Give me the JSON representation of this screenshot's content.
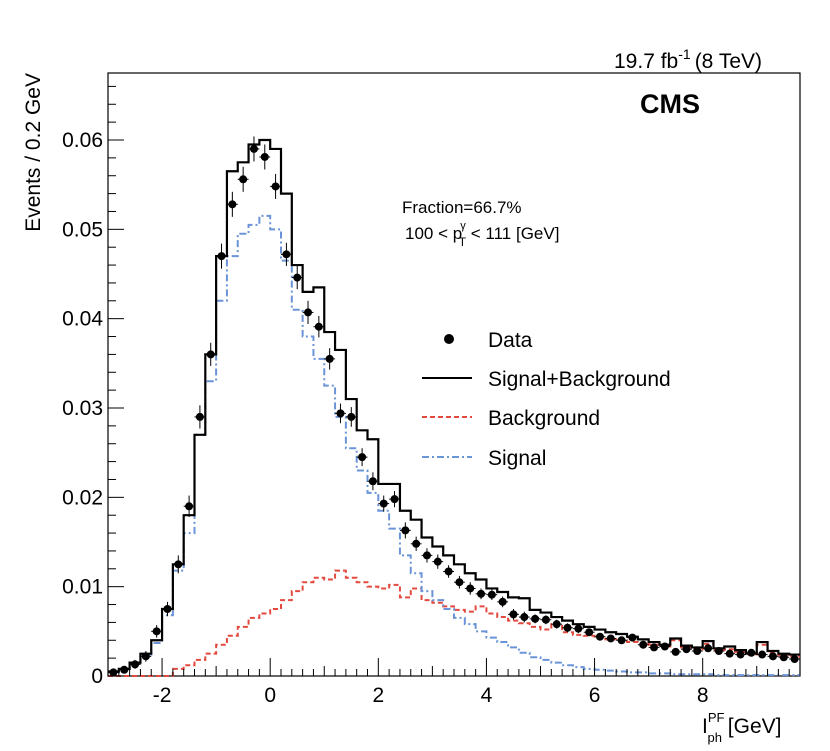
{
  "header": {
    "lumi": "19.7 fb",
    "lumi_sup": "-1",
    "energy": "(8 TeV)",
    "experiment": "CMS"
  },
  "annotation": {
    "fraction": "Fraction=66.7%",
    "range_prefix": "100 < p",
    "range_sup": "γ",
    "range_sub": "T",
    "range_suffix": " < 111 [GeV]"
  },
  "chart_data": {
    "type": "histogram",
    "title": "",
    "xlabel": "I",
    "xlabel_sup": "PF",
    "xlabel_sub": "ph",
    "xlabel_unit": " [GeV]",
    "ylabel": "Events / 0.2 GeV",
    "xlim": [
      -3,
      9.8
    ],
    "ylim": [
      0,
      0.0675
    ],
    "bin_width": 0.2,
    "x_ticks": [
      -2,
      0,
      2,
      4,
      6,
      8
    ],
    "y_ticks": [
      0,
      0.01,
      0.02,
      0.03,
      0.04,
      0.05,
      0.06
    ],
    "y_tick_labels": [
      "0",
      "0.01",
      "0.02",
      "0.03",
      "0.04",
      "0.05",
      "0.06"
    ],
    "x_tick_labels": [
      "-2",
      "0",
      "2",
      "4",
      "6",
      "8"
    ],
    "bin_edges_start": -3,
    "series": [
      {
        "name": "Signal+Background",
        "style": "solid",
        "color": "#000000",
        "values": [
          0.0005,
          0.0008,
          0.0015,
          0.0025,
          0.004,
          0.0075,
          0.0125,
          0.018,
          0.027,
          0.036,
          0.047,
          0.0565,
          0.0575,
          0.0595,
          0.06,
          0.059,
          0.054,
          0.046,
          0.043,
          0.0435,
          0.0385,
          0.0365,
          0.031,
          0.0275,
          0.0265,
          0.0215,
          0.0215,
          0.0185,
          0.0175,
          0.0155,
          0.0145,
          0.0135,
          0.0125,
          0.0115,
          0.0108,
          0.0098,
          0.0094,
          0.0088,
          0.0087,
          0.0074,
          0.0071,
          0.0066,
          0.0062,
          0.0058,
          0.0055,
          0.0052,
          0.0049,
          0.0047,
          0.0044,
          0.0041,
          0.0038,
          0.0035,
          0.0042,
          0.0034,
          0.0032,
          0.0039,
          0.0031,
          0.0033,
          0.0029,
          0.0025,
          0.0038,
          0.0028,
          0.0025,
          0.0024
        ]
      },
      {
        "name": "Background",
        "style": "dashed",
        "color": "#e34a3f",
        "values": [
          0.0,
          0.0,
          0.0,
          0.0,
          0.0,
          0.0,
          0.0008,
          0.0012,
          0.0018,
          0.0025,
          0.0035,
          0.0045,
          0.0055,
          0.0065,
          0.007,
          0.0075,
          0.0085,
          0.0095,
          0.0105,
          0.011,
          0.0108,
          0.0118,
          0.011,
          0.0105,
          0.01,
          0.0098,
          0.0102,
          0.0088,
          0.0098,
          0.0085,
          0.0082,
          0.0078,
          0.0074,
          0.0072,
          0.0078,
          0.007,
          0.0066,
          0.0062,
          0.0059,
          0.0055,
          0.0052,
          0.0058,
          0.0049,
          0.0046,
          0.0045,
          0.0043,
          0.0041,
          0.004,
          0.0038,
          0.0036,
          0.0035,
          0.0033,
          0.004,
          0.0032,
          0.003,
          0.0036,
          0.0029,
          0.003,
          0.0027,
          0.0024,
          0.0035,
          0.0026,
          0.0023,
          0.0022
        ]
      },
      {
        "name": "Signal",
        "style": "dashdot",
        "color": "#6a93d8",
        "values": [
          0.0004,
          0.0007,
          0.0014,
          0.0024,
          0.0037,
          0.0068,
          0.0118,
          0.016,
          0.027,
          0.033,
          0.042,
          0.047,
          0.0495,
          0.0505,
          0.0515,
          0.05,
          0.0465,
          0.041,
          0.038,
          0.0355,
          0.0325,
          0.029,
          0.0255,
          0.023,
          0.0205,
          0.0185,
          0.0165,
          0.0135,
          0.0115,
          0.0095,
          0.0085,
          0.0075,
          0.0065,
          0.0058,
          0.005,
          0.0043,
          0.0038,
          0.0032,
          0.0026,
          0.0021,
          0.0018,
          0.0015,
          0.0012,
          0.001,
          0.0008,
          0.0007,
          0.0006,
          0.0005,
          0.0004,
          0.0004,
          0.0003,
          0.0003,
          0.0002,
          0.0002,
          0.0002,
          0.0002,
          0.0001,
          0.0001,
          0.0001,
          0.0001,
          0.0001,
          0.0001,
          0.0001,
          0.0001
        ]
      }
    ],
    "data_points": {
      "name": "Data",
      "x": [
        -2.9,
        -2.7,
        -2.5,
        -2.3,
        -2.1,
        -1.9,
        -1.7,
        -1.5,
        -1.3,
        -1.1,
        -0.9,
        -0.7,
        -0.5,
        -0.3,
        -0.1,
        0.1,
        0.3,
        0.5,
        0.7,
        0.9,
        1.1,
        1.3,
        1.5,
        1.7,
        1.9,
        2.1,
        2.3,
        2.5,
        2.7,
        2.9,
        3.1,
        3.3,
        3.5,
        3.7,
        3.9,
        4.1,
        4.3,
        4.5,
        4.7,
        4.9,
        5.1,
        5.3,
        5.5,
        5.7,
        5.9,
        6.1,
        6.3,
        6.5,
        6.7,
        6.9,
        7.1,
        7.3,
        7.5,
        7.7,
        7.9,
        8.1,
        8.3,
        8.5,
        8.7,
        8.9,
        9.1,
        9.3,
        9.5,
        9.7
      ],
      "y": [
        0.0004,
        0.0007,
        0.0013,
        0.0022,
        0.005,
        0.0075,
        0.0125,
        0.019,
        0.029,
        0.036,
        0.047,
        0.0528,
        0.0556,
        0.059,
        0.0581,
        0.0548,
        0.0472,
        0.0446,
        0.0407,
        0.0391,
        0.0355,
        0.0294,
        0.029,
        0.0245,
        0.0218,
        0.0193,
        0.0198,
        0.0163,
        0.0148,
        0.0135,
        0.0128,
        0.0117,
        0.0105,
        0.0098,
        0.0092,
        0.0091,
        0.0083,
        0.0069,
        0.0066,
        0.0064,
        0.0063,
        0.0058,
        0.0054,
        0.0053,
        0.0049,
        0.0044,
        0.0042,
        0.004,
        0.0043,
        0.0035,
        0.0032,
        0.0033,
        0.0027,
        0.003,
        0.0028,
        0.0031,
        0.0028,
        0.0025,
        0.0024,
        0.0026,
        0.0024,
        0.0022,
        0.0021,
        0.0019
      ],
      "err": [
        0.0003,
        0.0004,
        0.0005,
        0.0006,
        0.0007,
        0.0008,
        0.001,
        0.0012,
        0.0013,
        0.0013,
        0.0014,
        0.0014,
        0.0014,
        0.0014,
        0.0014,
        0.0014,
        0.0013,
        0.0013,
        0.0013,
        0.0012,
        0.0012,
        0.0011,
        0.0011,
        0.001,
        0.001,
        0.0009,
        0.0009,
        0.0009,
        0.0008,
        0.0008,
        0.0008,
        0.0007,
        0.0007,
        0.0007,
        0.0006,
        0.0006,
        0.0006,
        0.0006,
        0.0006,
        0.0005,
        0.0005,
        0.0005,
        0.0005,
        0.0005,
        0.0004,
        0.0004,
        0.0004,
        0.0004,
        0.0004,
        0.0004,
        0.0004,
        0.0004,
        0.0003,
        0.0003,
        0.0003,
        0.0003,
        0.0003,
        0.0003,
        0.0003,
        0.0003,
        0.0003,
        0.0003,
        0.0003,
        0.0003
      ]
    },
    "legend": {
      "placement": "center-right",
      "entries": [
        "Data",
        "Signal+Background",
        "Background",
        "Signal"
      ]
    }
  }
}
